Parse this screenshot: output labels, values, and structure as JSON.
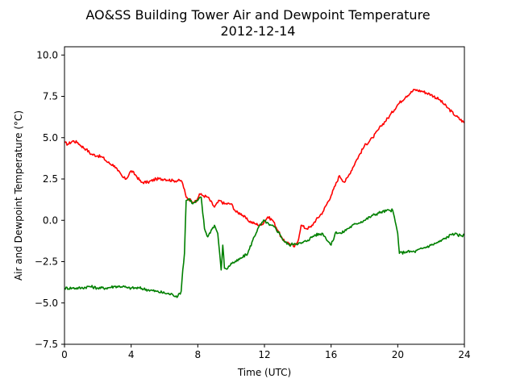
{
  "chart_data": {
    "type": "line",
    "title": "AO&SS Building Tower Air and Dewpoint Temperature",
    "subtitle": "2012-12-14",
    "xlabel": "Time (UTC)",
    "ylabel": "Air and Dewpoint Temperature (°C)",
    "xlim": [
      0,
      24
    ],
    "ylim": [
      -7.5,
      10.5
    ],
    "xticks": [
      0,
      4,
      8,
      12,
      16,
      20,
      24
    ],
    "xtick_labels": [
      "0",
      "4",
      "8",
      "12",
      "16",
      "20",
      "24"
    ],
    "yticks": [
      -7.5,
      -5.0,
      -2.5,
      0.0,
      2.5,
      5.0,
      7.5,
      10.0
    ],
    "ytick_labels": [
      "−7.5",
      "−5.0",
      "−2.5",
      "0.0",
      "2.5",
      "5.0",
      "7.5",
      "10.0"
    ],
    "grid": false,
    "legend": "none",
    "series": [
      {
        "color": "#ff0000",
        "x": [
          0,
          0.2,
          0.5,
          0.8,
          1.0,
          1.3,
          1.6,
          2.0,
          2.3,
          2.6,
          3.0,
          3.2,
          3.5,
          3.7,
          4.0,
          4.3,
          4.6,
          5.0,
          5.5,
          6.0,
          6.5,
          7.0,
          7.1,
          7.3,
          7.6,
          7.9,
          8.1,
          8.3,
          8.6,
          9.0,
          9.3,
          9.6,
          10.0,
          10.3,
          10.6,
          11.0,
          11.4,
          11.8,
          12.2,
          12.5,
          12.8,
          13.1,
          13.5,
          13.8,
          14.0,
          14.2,
          14.5,
          14.8,
          15.0,
          15.5,
          16.0,
          16.5,
          16.8,
          17.0,
          17.5,
          18.0,
          18.5,
          19.0,
          19.5,
          20.0,
          20.5,
          21.0,
          21.5,
          22.0,
          22.5,
          23.0,
          23.5,
          24.0
        ],
        "values": [
          4.7,
          4.6,
          4.8,
          4.7,
          4.5,
          4.3,
          4.0,
          3.9,
          3.8,
          3.5,
          3.3,
          3.0,
          2.6,
          2.5,
          3.0,
          2.7,
          2.3,
          2.3,
          2.5,
          2.5,
          2.4,
          2.4,
          2.2,
          1.4,
          1.2,
          1.1,
          1.6,
          1.5,
          1.4,
          0.8,
          1.2,
          1.0,
          1.0,
          0.5,
          0.4,
          0.0,
          -0.2,
          -0.3,
          0.2,
          0.0,
          -0.6,
          -1.2,
          -1.4,
          -1.6,
          -1.3,
          -0.3,
          -0.5,
          -0.4,
          -0.1,
          0.5,
          1.5,
          2.7,
          2.3,
          2.6,
          3.6,
          4.5,
          5.0,
          5.7,
          6.3,
          7.0,
          7.5,
          7.9,
          7.8,
          7.6,
          7.3,
          6.8,
          6.3,
          5.9
        ]
      },
      {
        "color": "#008000",
        "x": [
          0,
          0.5,
          1.0,
          1.5,
          2.0,
          2.5,
          3.0,
          3.5,
          3.8,
          4.0,
          4.5,
          5.0,
          5.5,
          6.0,
          6.5,
          6.8,
          7.0,
          7.1,
          7.2,
          7.3,
          7.5,
          7.7,
          8.0,
          8.2,
          8.4,
          8.6,
          8.8,
          9.0,
          9.2,
          9.4,
          9.5,
          9.6,
          9.8,
          10.0,
          10.3,
          10.6,
          11.0,
          11.3,
          11.6,
          12.0,
          12.3,
          12.6,
          12.9,
          13.2,
          13.5,
          13.8,
          14.2,
          14.6,
          15.0,
          15.5,
          16.0,
          16.3,
          16.6,
          17.0,
          17.5,
          18.0,
          18.5,
          19.0,
          19.5,
          19.7,
          20.0,
          20.1,
          20.5,
          21.0,
          21.5,
          22.0,
          22.5,
          23.0,
          23.3,
          23.6,
          24.0
        ],
        "values": [
          -4.1,
          -4.1,
          -4.1,
          -4.0,
          -4.1,
          -4.1,
          -4.0,
          -4.0,
          -4.1,
          -4.1,
          -4.1,
          -4.2,
          -4.3,
          -4.4,
          -4.5,
          -4.6,
          -4.3,
          -3.0,
          -2.0,
          1.2,
          1.3,
          1.0,
          1.2,
          1.4,
          -0.5,
          -1.0,
          -0.6,
          -0.3,
          -0.8,
          -3.0,
          -1.5,
          -2.9,
          -2.9,
          -2.6,
          -2.5,
          -2.3,
          -2.0,
          -1.2,
          -0.5,
          0.0,
          -0.3,
          -0.4,
          -0.8,
          -1.3,
          -1.5,
          -1.4,
          -1.4,
          -1.2,
          -0.9,
          -0.8,
          -1.5,
          -0.7,
          -0.8,
          -0.5,
          -0.2,
          0.0,
          0.3,
          0.5,
          0.6,
          0.6,
          -0.8,
          -2.0,
          -1.9,
          -1.9,
          -1.7,
          -1.5,
          -1.3,
          -1.0,
          -0.8,
          -0.9,
          -0.9
        ]
      }
    ]
  }
}
